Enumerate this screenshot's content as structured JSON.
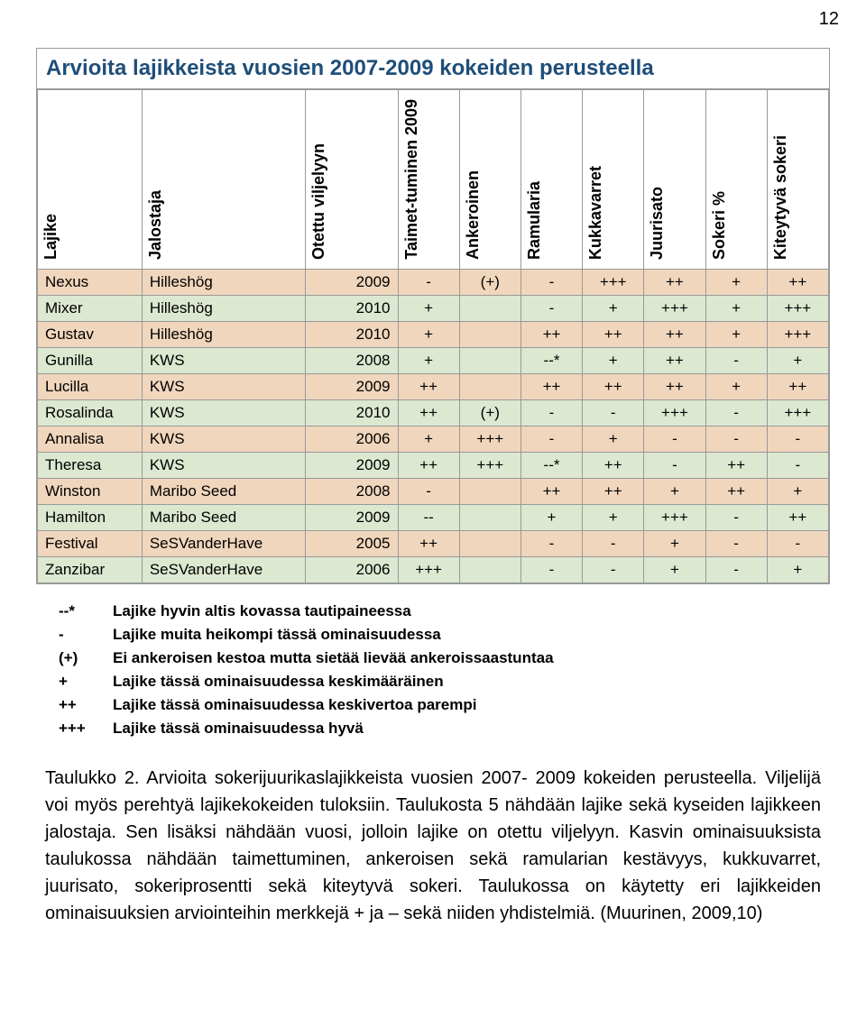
{
  "page_number": "12",
  "table": {
    "title": "Arvioita lajikkeista vuosien 2007-2009 kokeiden perusteella",
    "headers": [
      "Lajike",
      "Jalostaja",
      "Otettu viljelyyn",
      "Taimet-tuminen 2009",
      "Ankeroinen",
      "Ramularia",
      "Kukkavarret",
      "Juurisato",
      "Sokeri %",
      "Kiteytyvä sokeri"
    ],
    "colors": {
      "row_odd": "#f0d6bc",
      "row_even": "#dce8d0",
      "border": "#999999",
      "title_color": "#1f4e79"
    },
    "rows": [
      [
        "Nexus",
        "Hilleshög",
        "2009",
        "-",
        "(+)",
        "-",
        "+++",
        "++",
        "+",
        "++"
      ],
      [
        "Mixer",
        "Hilleshög",
        "2010",
        "+",
        "",
        "-",
        "+",
        "+++",
        "+",
        "+++"
      ],
      [
        "Gustav",
        "Hilleshög",
        "2010",
        "+",
        "",
        "++",
        "++",
        "++",
        "+",
        "+++"
      ],
      [
        "Gunilla",
        "KWS",
        "2008",
        "+",
        "",
        "--*",
        "+",
        "++",
        "-",
        "+"
      ],
      [
        "Lucilla",
        "KWS",
        "2009",
        "++",
        "",
        "++",
        "++",
        "++",
        "+",
        "++"
      ],
      [
        "Rosalinda",
        "KWS",
        "2010",
        "++",
        "(+)",
        "-",
        "-",
        "+++",
        "-",
        "+++"
      ],
      [
        "Annalisa",
        "KWS",
        "2006",
        "+",
        "+++",
        "-",
        "+",
        "-",
        "-",
        "-"
      ],
      [
        "Theresa",
        "KWS",
        "2009",
        "++",
        "+++",
        "--*",
        "++",
        "-",
        "++",
        "-"
      ],
      [
        "Winston",
        "Maribo Seed",
        "2008",
        "-",
        "",
        "++",
        "++",
        "+",
        "++",
        "+"
      ],
      [
        "Hamilton",
        "Maribo Seed",
        "2009",
        "--",
        "",
        "+",
        "+",
        "+++",
        "-",
        "++"
      ],
      [
        "Festival",
        "SeSVanderHave",
        "2005",
        "++",
        "",
        "-",
        "-",
        "+",
        "-",
        "-"
      ],
      [
        "Zanzibar",
        "SeSVanderHave",
        "2006",
        "+++",
        "",
        "-",
        "-",
        "+",
        "-",
        "+"
      ]
    ]
  },
  "legend": [
    {
      "sym": "--*",
      "text": "Lajike hyvin altis kovassa tautipaineessa"
    },
    {
      "sym": "-",
      "text": "Lajike muita heikompi tässä ominaisuudessa"
    },
    {
      "sym": "(+)",
      "text": "Ei ankeroisen kestoa mutta sietää lievää ankeroissaastuntaa"
    },
    {
      "sym": "+",
      "text": "Lajike tässä ominaisuudessa keskimääräinen"
    },
    {
      "sym": "++",
      "text": "Lajike tässä ominaisuudessa keskivertoa parempi"
    },
    {
      "sym": "+++",
      "text": "Lajike tässä ominaisuudessa hyvä"
    }
  ],
  "caption": "Taulukko 2. Arvioita sokerijuurikaslajikkeista vuosien 2007- 2009 kokeiden perusteella. Viljelijä voi myös perehtyä lajikekokeiden tuloksiin. Taulukosta 5 nähdään lajike sekä kyseiden lajikkeen jalostaja. Sen lisäksi nähdään vuosi, jolloin lajike on otettu viljelyyn. Kasvin ominaisuuksista taulukossa nähdään taimettuminen, ankeroisen sekä ramularian kestävyys, kukkuvarret, juurisato, sokeriprosentti sekä kiteytyvä sokeri. Taulukossa on käytetty eri lajikkeiden ominaisuuksien arviointeihin merkkejä + ja – sekä niiden yhdistelmiä. (Muurinen, 2009,10)"
}
